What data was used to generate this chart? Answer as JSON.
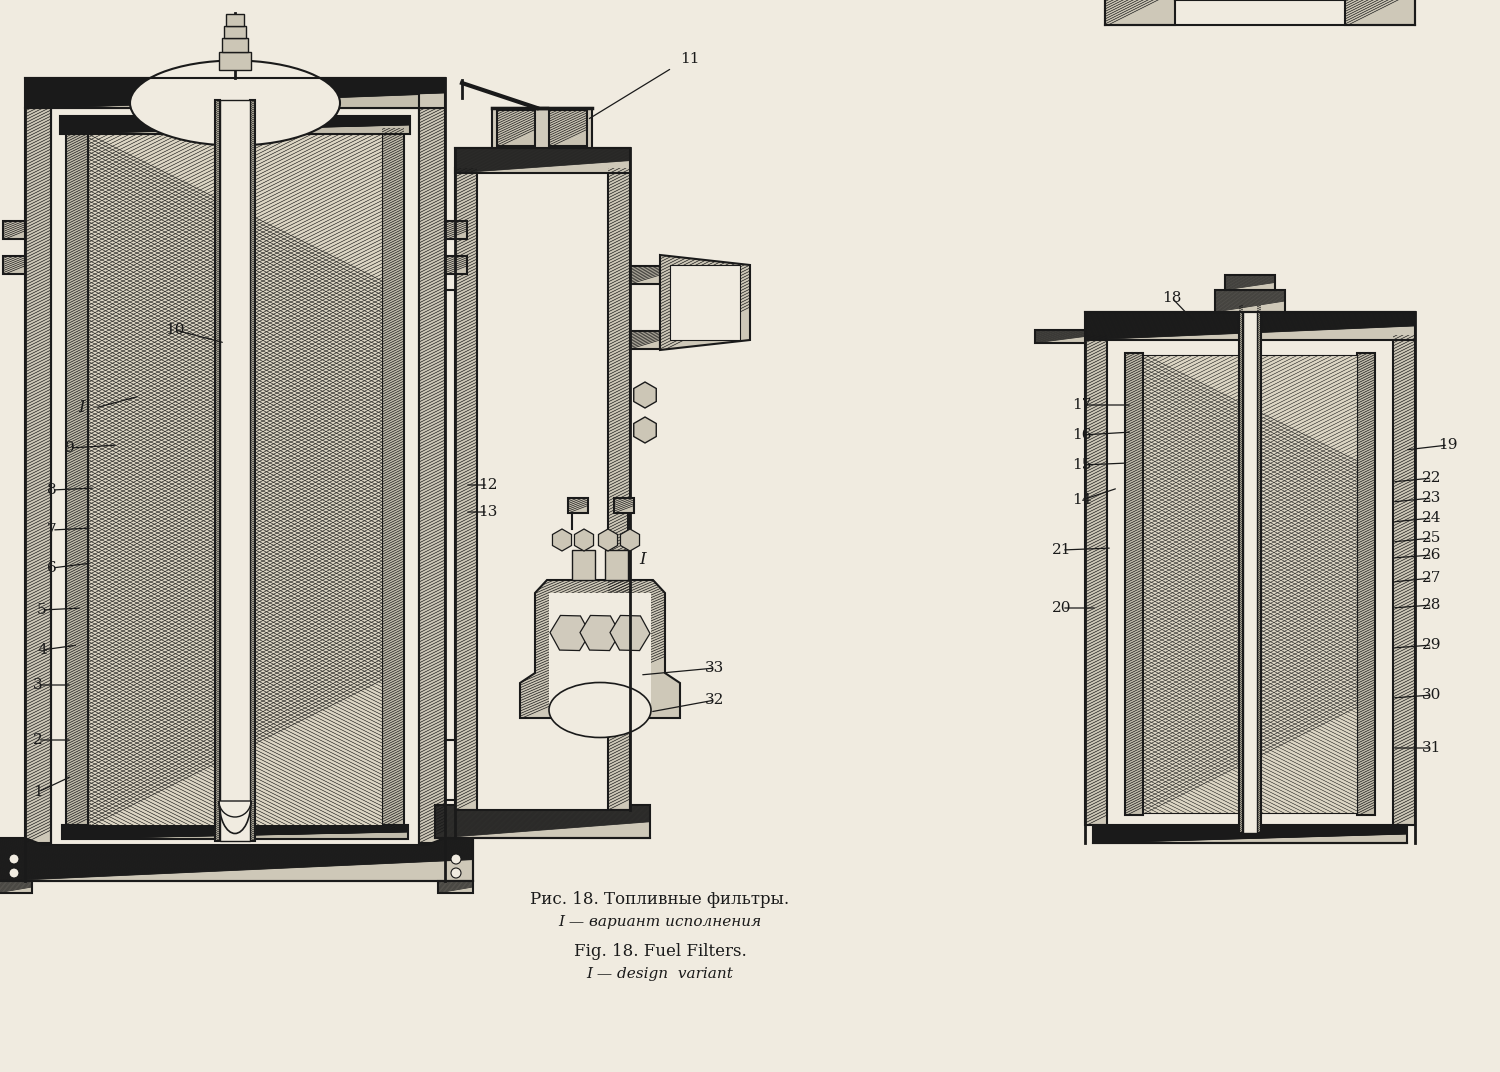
{
  "bg_color": "#f0ebe0",
  "line_color": "#1a1a1a",
  "title_ru": "Рис. 18. Топливные фильтры.",
  "subtitle_ru": "I — вариант исполнения",
  "title_en": "Fig. 18. Fuel Filters.",
  "subtitle_en": "I — design  variant"
}
